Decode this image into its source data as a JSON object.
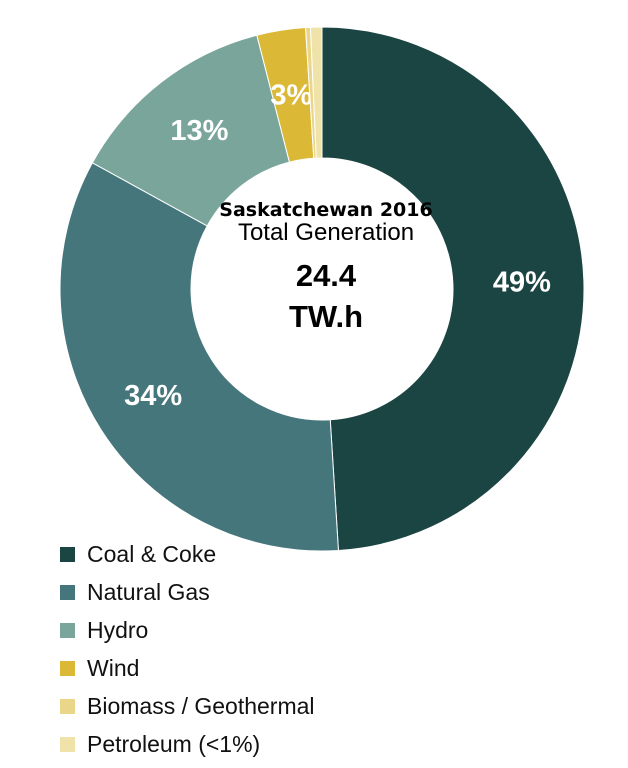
{
  "center": {
    "title": "Saskatchewan 2016",
    "subtitle": "Total Generation",
    "value": "24.4",
    "unit": "TW.h"
  },
  "chart_data": {
    "type": "pie",
    "donut": true,
    "categories": [
      "Coal & Coke",
      "Natural Gas",
      "Hydro",
      "Wind",
      "Biomass / Geothermal",
      "Petroleum (<1%)"
    ],
    "values": [
      49,
      34,
      13,
      3,
      0.3,
      0.7
    ],
    "data_labels": [
      "49%",
      "34%",
      "13%",
      "3%",
      "",
      ""
    ],
    "colors": [
      "#1b4542",
      "#45767c",
      "#7aa59b",
      "#dbb937",
      "#ead689",
      "#efe3a9"
    ],
    "legend_position": "bottom-left"
  }
}
